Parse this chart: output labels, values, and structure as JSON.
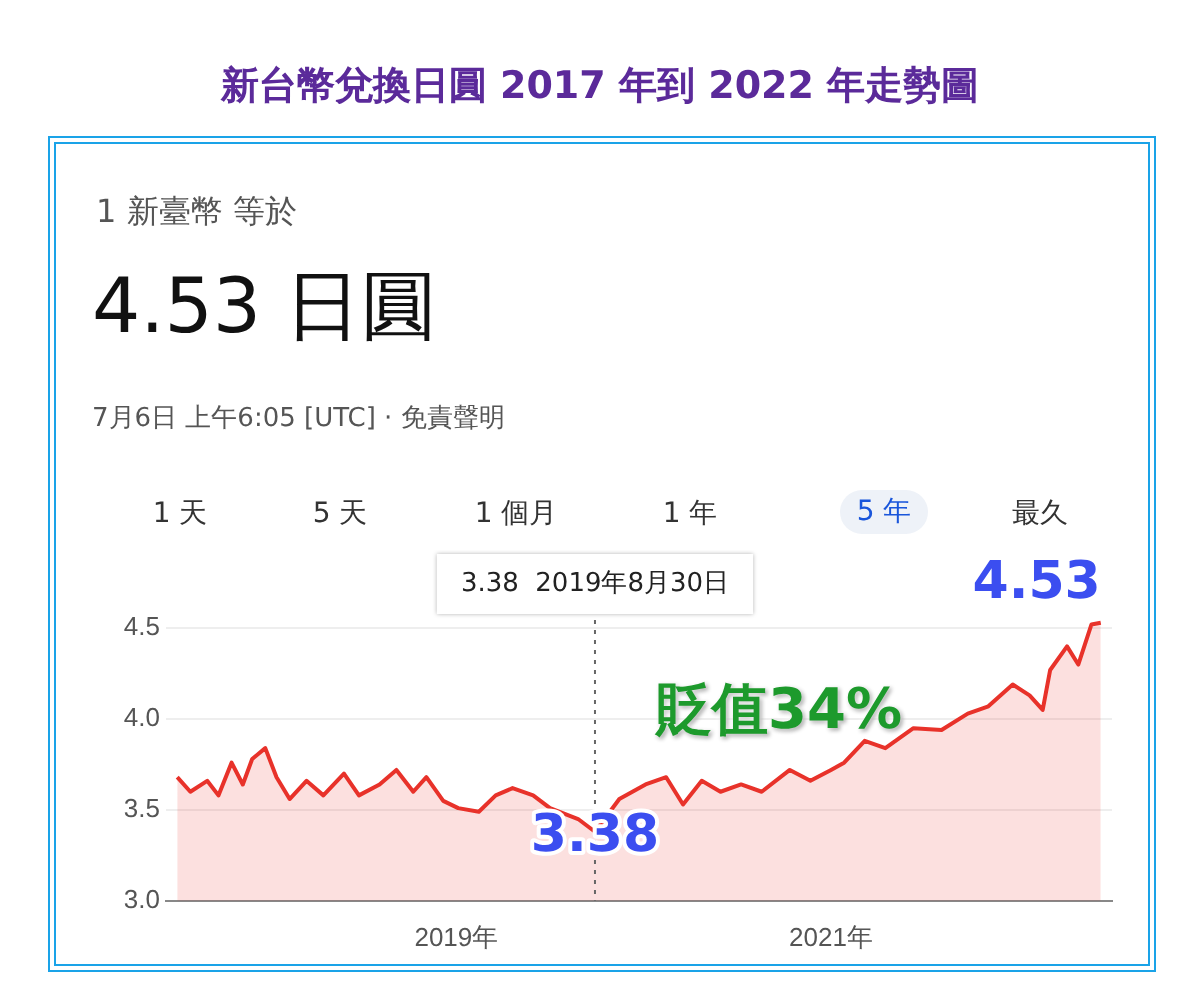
{
  "chart_data": {
    "type": "area",
    "title": "新台幣兌換日圓 2017 年到 2022 年走勢圖",
    "annotations": [
      "1 新臺幣 等於",
      "4.53 日圓",
      "7月6日 上午6:05 [UTC] · 免責聲明",
      "1 天",
      "5 天",
      "1 個月",
      "1 年",
      "5 年",
      "最久",
      "貶值34%",
      {
        "text": "3.38",
        "x": 2019.74,
        "y": 3.38
      },
      {
        "text": "4.53",
        "x": 2022.44,
        "y": 4.53
      }
    ],
    "series": [
      {
        "color": "#e8322a",
        "x": [
          2017.51,
          2017.58,
          2017.67,
          2017.73,
          2017.8,
          2017.86,
          2017.91,
          2017.98,
          2018.04,
          2018.11,
          2018.2,
          2018.29,
          2018.4,
          2018.48,
          2018.59,
          2018.68,
          2018.77,
          2018.84,
          2018.93,
          2019.01,
          2019.12,
          2019.21,
          2019.3,
          2019.41,
          2019.5,
          2019.65,
          2019.74,
          2019.87,
          2020.01,
          2020.12,
          2020.21,
          2020.31,
          2020.41,
          2020.52,
          2020.63,
          2020.78,
          2020.89,
          2021.0,
          2021.07,
          2021.18,
          2021.29,
          2021.44,
          2021.59,
          2021.73,
          2021.84,
          2021.97,
          2022.06,
          2022.13,
          2022.17,
          2022.26,
          2022.32,
          2022.39,
          2022.44
        ],
        "values": [
          3.68,
          3.6,
          3.66,
          3.58,
          3.76,
          3.64,
          3.78,
          3.84,
          3.68,
          3.56,
          3.66,
          3.58,
          3.7,
          3.58,
          3.64,
          3.72,
          3.6,
          3.68,
          3.55,
          3.51,
          3.49,
          3.58,
          3.62,
          3.58,
          3.51,
          3.45,
          3.38,
          3.56,
          3.64,
          3.68,
          3.53,
          3.66,
          3.6,
          3.64,
          3.6,
          3.72,
          3.66,
          3.72,
          3.76,
          3.88,
          3.84,
          3.95,
          3.94,
          4.03,
          4.07,
          4.19,
          4.13,
          4.05,
          4.27,
          4.4,
          4.3,
          4.52,
          4.53
        ]
      }
    ],
    "xlim": [
      2017.45,
      2022.5
    ],
    "xticks": [
      {
        "value": 2019,
        "label": "2019年"
      },
      {
        "value": 2021,
        "label": "2021年"
      }
    ],
    "ylim": [
      3.0,
      4.6
    ],
    "yticks": [
      {
        "value": 3,
        "label": "3.0"
      },
      3.5,
      {
        "value": 4,
        "label": "4.0"
      },
      4.5
    ],
    "grid": "y",
    "ref_lines": [
      {
        "axis": "x",
        "value": 2019.74,
        "label": "3.38  2019年8月30日",
        "line_style": "dotted",
        "color": "#666666"
      }
    ]
  }
}
